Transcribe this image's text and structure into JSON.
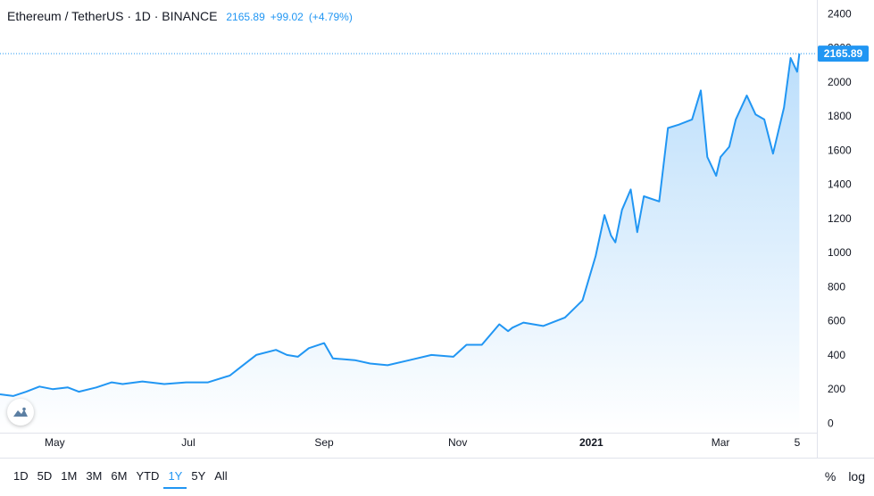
{
  "legend": {
    "symbol": "Ethereum / TetherUS · 1D · BINANCE",
    "last": "2165.89",
    "change": "+99.02",
    "change_pct": "(+4.79%)"
  },
  "price_tag": "2165.89",
  "ranges": [
    "1D",
    "5D",
    "1M",
    "3M",
    "6M",
    "YTD",
    "1Y",
    "5Y",
    "All"
  ],
  "active_range": "1Y",
  "toggles": {
    "percent": "%",
    "log": "log"
  },
  "colors": {
    "line": "#2196f3",
    "fill_top": "#bbdefb",
    "fill_bottom": "#ffffff",
    "axis_text": "#131722",
    "tag_bg": "#2196f3"
  },
  "chart_data": {
    "type": "area",
    "yticks": [
      0,
      200,
      400,
      600,
      800,
      1000,
      1200,
      1400,
      1600,
      1800,
      2000,
      2200,
      2400
    ],
    "ylim": [
      -55,
      2480
    ],
    "xticks": [
      {
        "date": "2020-05-01",
        "label": "May"
      },
      {
        "date": "2020-07-01",
        "label": "Jul"
      },
      {
        "date": "2020-09-01",
        "label": "Sep"
      },
      {
        "date": "2020-11-01",
        "label": "Nov"
      },
      {
        "date": "2021-01-01",
        "label": "2021"
      },
      {
        "date": "2021-03-01",
        "label": "Mar"
      },
      {
        "date": "2021-04-05",
        "label": "5"
      }
    ],
    "xlim": [
      "2020-04-06",
      "2021-04-14"
    ],
    "series": [
      {
        "x": [
          "2020-04-06",
          "2020-04-12",
          "2020-04-18",
          "2020-04-24",
          "2020-04-30",
          "2020-05-07",
          "2020-05-12",
          "2020-05-20",
          "2020-05-27",
          "2020-06-01",
          "2020-06-10",
          "2020-06-20",
          "2020-06-30",
          "2020-07-10",
          "2020-07-20",
          "2020-07-25",
          "2020-08-01",
          "2020-08-10",
          "2020-08-15",
          "2020-08-20",
          "2020-08-25",
          "2020-09-01",
          "2020-09-05",
          "2020-09-15",
          "2020-09-22",
          "2020-09-30",
          "2020-10-10",
          "2020-10-20",
          "2020-10-30",
          "2020-11-05",
          "2020-11-12",
          "2020-11-20",
          "2020-11-24",
          "2020-11-26",
          "2020-12-01",
          "2020-12-10",
          "2020-12-20",
          "2020-12-28",
          "2021-01-03",
          "2021-01-07",
          "2021-01-10",
          "2021-01-12",
          "2021-01-15",
          "2021-01-19",
          "2021-01-22",
          "2021-01-25",
          "2021-02-01",
          "2021-02-05",
          "2021-02-10",
          "2021-02-16",
          "2021-02-20",
          "2021-02-23",
          "2021-02-27",
          "2021-03-01",
          "2021-03-05",
          "2021-03-08",
          "2021-03-13",
          "2021-03-17",
          "2021-03-21",
          "2021-03-25",
          "2021-03-30",
          "2021-04-02",
          "2021-04-05",
          "2021-04-06"
        ],
        "values": [
          170,
          160,
          185,
          215,
          200,
          210,
          185,
          210,
          240,
          230,
          245,
          230,
          240,
          240,
          280,
          330,
          400,
          430,
          400,
          390,
          440,
          470,
          380,
          370,
          350,
          340,
          370,
          400,
          390,
          460,
          460,
          580,
          540,
          560,
          590,
          570,
          620,
          720,
          980,
          1220,
          1100,
          1060,
          1250,
          1370,
          1120,
          1330,
          1300,
          1730,
          1750,
          1780,
          1950,
          1560,
          1450,
          1560,
          1620,
          1780,
          1920,
          1810,
          1780,
          1580,
          1850,
          2140,
          2060,
          2165.89
        ]
      }
    ]
  }
}
